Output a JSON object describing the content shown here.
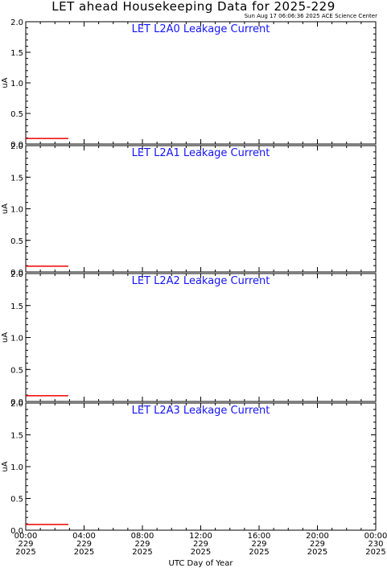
{
  "header": {
    "title": "LET ahead Housekeeping Data for 2025-229",
    "timestamp": "Sun Aug 17 06:06:36 2025 ACE Science Center"
  },
  "colors": {
    "panel_title": "#1515ff",
    "series": "#ee0000",
    "axes": "#000000"
  },
  "chart_data": [
    {
      "type": "line",
      "title": "LET L2A0 Leakage Current",
      "ylabel": "uA",
      "ylim": [
        0,
        2.0
      ],
      "yticks": [
        "0.0",
        "0.5",
        "1.0",
        "1.5",
        "2.0"
      ],
      "xlim": [
        "2025-229 00:00",
        "2025-230 00:00"
      ],
      "series": [
        {
          "points": [
            {
              "x": "00:00",
              "y": 0.09
            },
            {
              "x": "02:55",
              "y": 0.09
            }
          ]
        }
      ]
    },
    {
      "type": "line",
      "title": "LET L2A1 Leakage Current",
      "ylabel": "uA",
      "ylim": [
        0,
        2.0
      ],
      "yticks": [
        "0.0",
        "0.5",
        "1.0",
        "1.5",
        "2.0"
      ],
      "xlim": [
        "2025-229 00:00",
        "2025-230 00:00"
      ],
      "series": [
        {
          "points": [
            {
              "x": "00:00",
              "y": 0.09
            },
            {
              "x": "02:55",
              "y": 0.09
            }
          ]
        }
      ]
    },
    {
      "type": "line",
      "title": "LET L2A2 Leakage Current",
      "ylabel": "uA",
      "ylim": [
        0,
        2.0
      ],
      "yticks": [
        "0.0",
        "0.5",
        "1.0",
        "1.5",
        "2.0"
      ],
      "xlim": [
        "2025-229 00:00",
        "2025-230 00:00"
      ],
      "series": [
        {
          "points": [
            {
              "x": "00:00",
              "y": 0.09
            },
            {
              "x": "02:55",
              "y": 0.09
            }
          ]
        }
      ]
    },
    {
      "type": "line",
      "title": "LET L2A3 Leakage Current",
      "ylabel": "uA",
      "ylim": [
        0,
        2.0
      ],
      "yticks": [
        "0.0",
        "0.5",
        "1.0",
        "1.5",
        "2.0"
      ],
      "xlim": [
        "2025-229 00:00",
        "2025-230 00:00"
      ],
      "series": [
        {
          "points": [
            {
              "x": "00:00",
              "y": 0.09
            },
            {
              "x": "02:55",
              "y": 0.09
            }
          ]
        }
      ]
    }
  ],
  "x_axis": {
    "label": "UTC Day of Year",
    "ticks": [
      {
        "time": "00:00",
        "day": "229",
        "year": "2025"
      },
      {
        "time": "04:00",
        "day": "229",
        "year": "2025"
      },
      {
        "time": "08:00",
        "day": "229",
        "year": "2025"
      },
      {
        "time": "12:00",
        "day": "229",
        "year": "2025"
      },
      {
        "time": "16:00",
        "day": "229",
        "year": "2025"
      },
      {
        "time": "20:00",
        "day": "229",
        "year": "2025"
      },
      {
        "time": "00:00",
        "day": "230",
        "year": "2025"
      }
    ]
  }
}
